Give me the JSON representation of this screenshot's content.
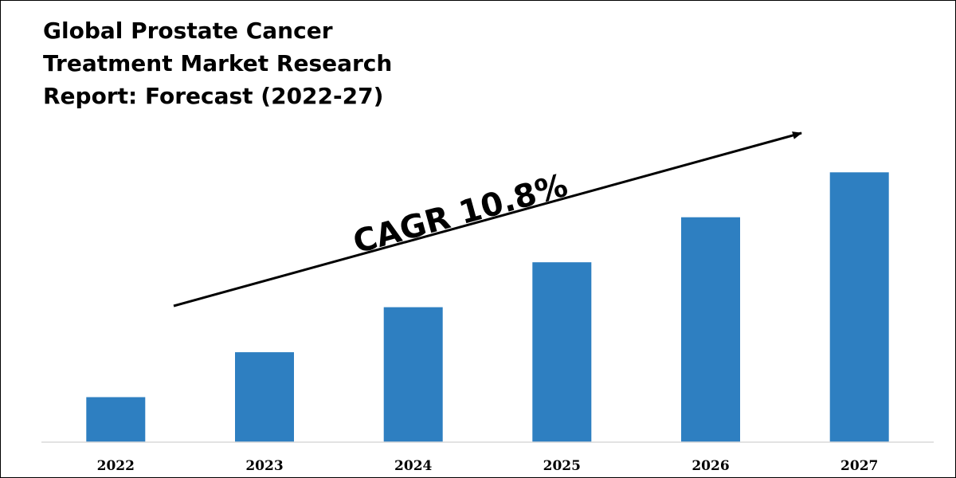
{
  "chart_data": {
    "type": "bar",
    "title": "Global Prostate Cancer Treatment Market Research Report: Forecast (2022-27)",
    "categories": [
      "2022",
      "2023",
      "2024",
      "2025",
      "2026",
      "2027"
    ],
    "values": [
      1.0,
      2.0,
      3.0,
      4.0,
      5.0,
      6.0
    ],
    "ylim": [
      0,
      6.2
    ],
    "grid": false,
    "legend": "none",
    "bar_color": "#2e7fc1",
    "annotation": {
      "text": "CAGR 10.8%",
      "style": "upward trend arrow"
    }
  }
}
